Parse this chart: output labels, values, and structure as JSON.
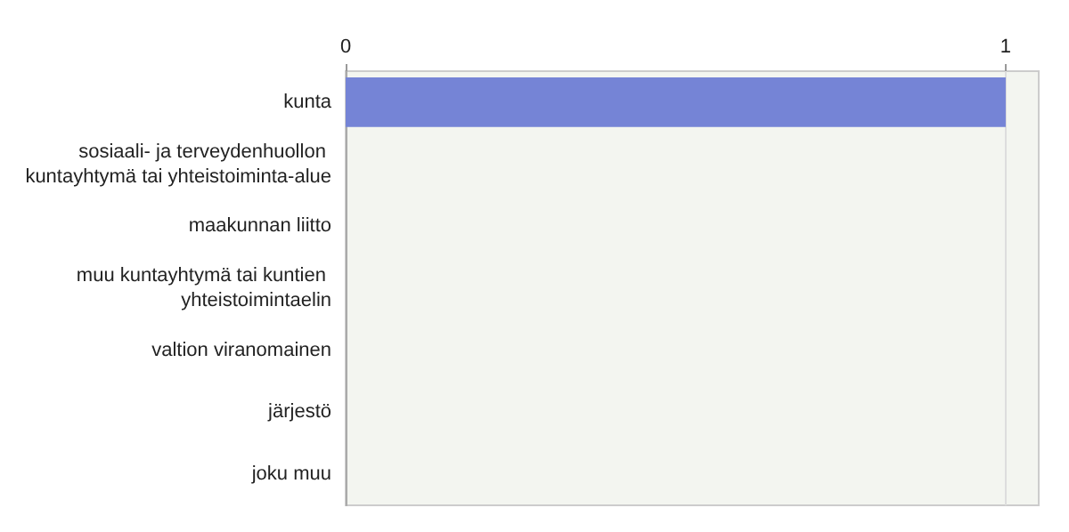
{
  "chart_data": {
    "type": "bar",
    "orientation": "horizontal",
    "categories": [
      "kunta",
      "sosiaali- ja terveydenhuollon kuntayhtymä tai yhteistoiminta-alue",
      "maakunnan liitto",
      "muu kuntayhtymä tai kuntien yhteistoimintaelin",
      "valtion viranomainen",
      "järjestö",
      "joku muu"
    ],
    "values": [
      1,
      0,
      0,
      0,
      0,
      0,
      0
    ],
    "color": "#7584d6",
    "xlim": [
      0,
      1.05
    ],
    "xticks": [
      0,
      1
    ],
    "grid": "x"
  }
}
